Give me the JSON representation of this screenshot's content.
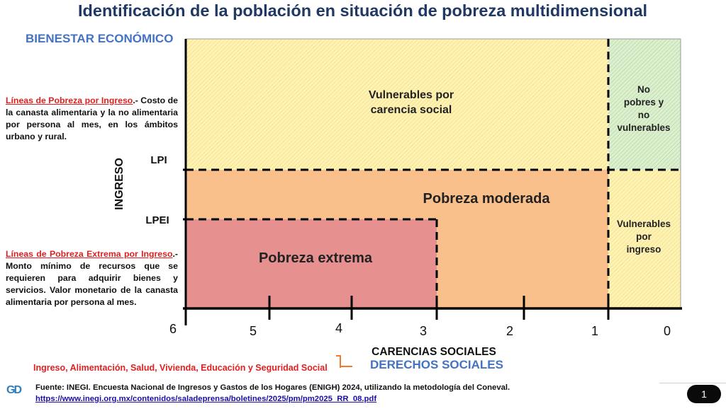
{
  "title": "Identificación de la población en situación de pobreza multidimensional",
  "header_label": "BIENESTAR ECONÓMICO",
  "note_lpi": {
    "term": "Líneas de Pobreza por Ingreso",
    "text": ".- Costo de la canasta alimentaria y la no alimentaria por persona al mes, en los ámbitos urbano y rural."
  },
  "note_lpei": {
    "term": "Líneas de Pobreza Extrema por Ingreso",
    "text": ".- Monto mínimo de recursos que se requieren para adquirir bienes y servicios. Valor monetario de la canasta alimentaria por persona al mes."
  },
  "diagram": {
    "y_axis_label": "INGRESO",
    "lpi_label": "LPI",
    "lpei_label": "LPEI",
    "x_axis_label": "CARENCIAS SOCIALES",
    "x_ticks": [
      "6",
      "5",
      "4",
      "3",
      "2",
      "1",
      "0"
    ],
    "regions": {
      "vulnerables_carencia": [
        "Vulnerables por",
        "carencia social"
      ],
      "no_pobres": [
        "No",
        "pobres y",
        "no",
        "vulnerables"
      ],
      "pobreza_moderada": "Pobreza moderada",
      "vulnerables_ingreso": [
        "Vulnerables",
        "por",
        "ingreso"
      ],
      "pobreza_extrema": "Pobreza extrema"
    },
    "colors": {
      "vulnerables_carencia": "#fff0a8",
      "no_pobres": "#d6ecc8",
      "pobreza_moderada": "#f9c08a",
      "vulnerables_ingreso": "#fff0a8",
      "pobreza_extrema": "#e69090"
    }
  },
  "rights_list": "Ingreso, Alimentación, Salud, Vivienda, Educación y Seguridad Social",
  "rights_label": "DERECHOS SOCIALES",
  "logo_text": "GD",
  "source": "Fuente: INEGI. Encuesta Nacional de Ingresos y Gastos de los Hogares (ENIGH) 2024, utilizando la metodología del Coneval.",
  "source_url": "https://www.inegi.org.mx/contenidos/saladeprensa/boletines/2025/pm/pm2025_RR_08.pdf",
  "page_number": "1"
}
